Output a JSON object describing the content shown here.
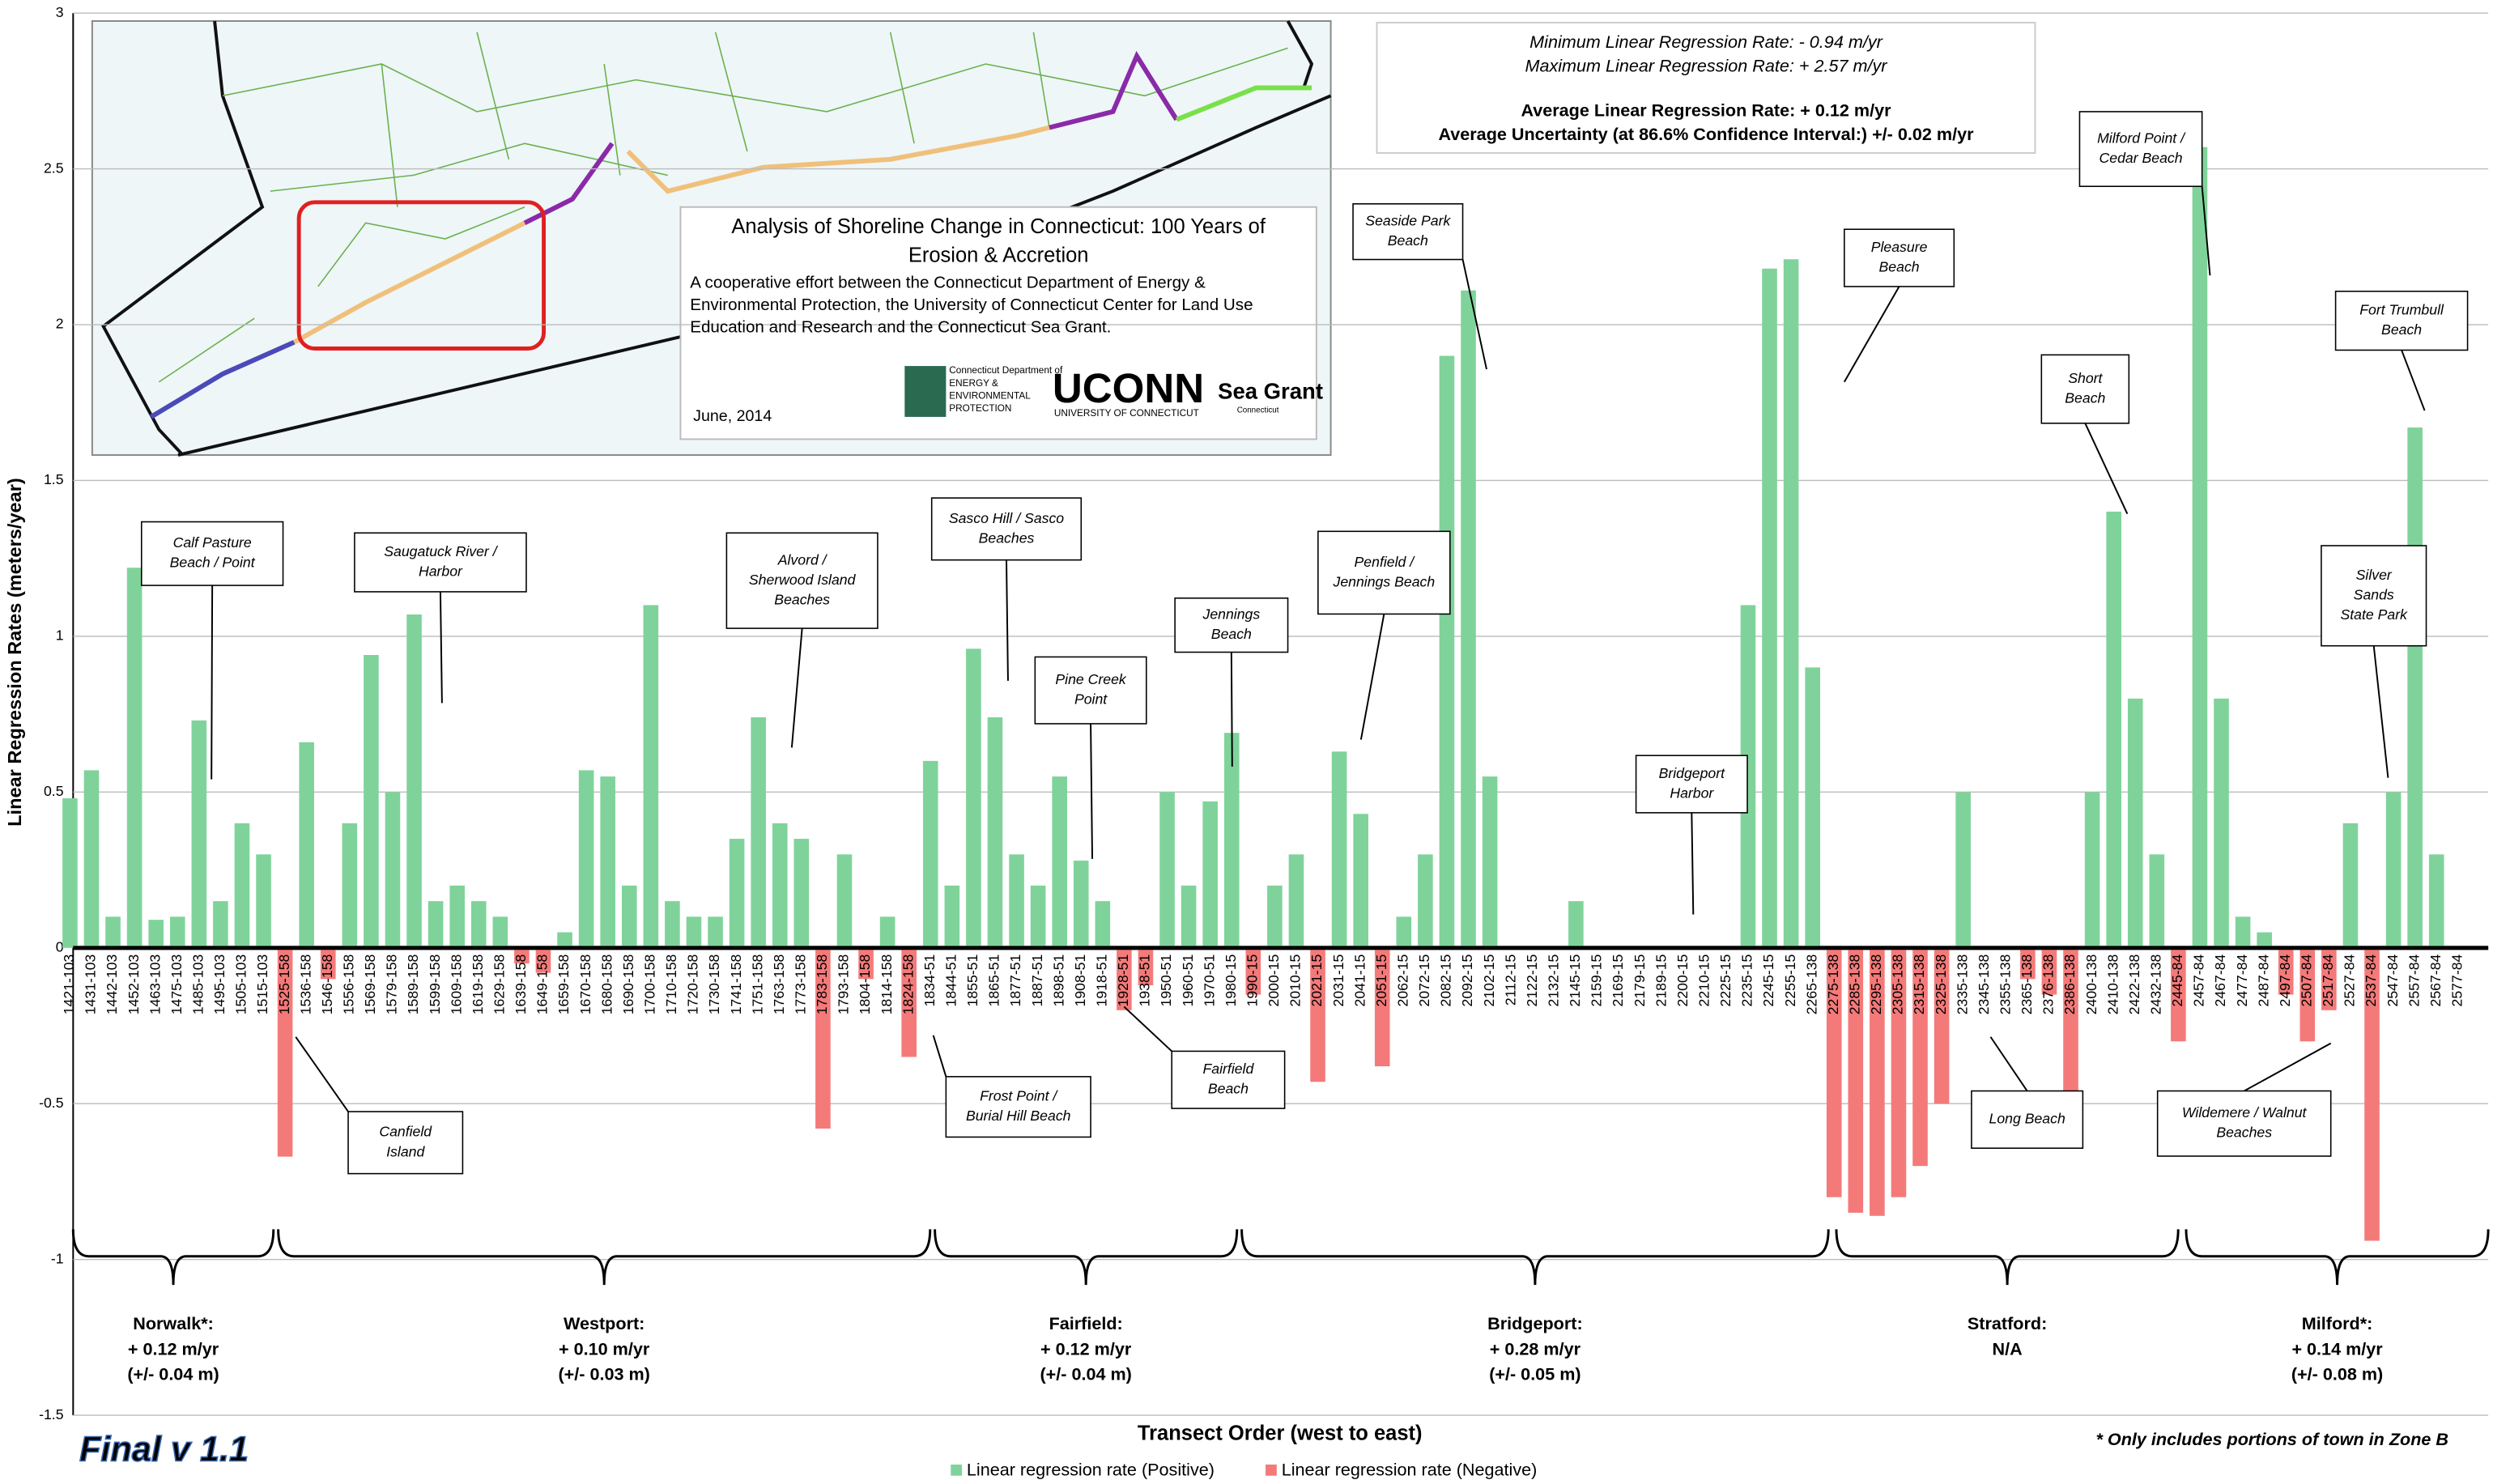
{
  "chart_data": {
    "type": "bar",
    "y_axis_label": "Linear Regression Rates (meters/year)",
    "x_axis_label": "Transect Order (west to east)",
    "ylim": [
      -1.5,
      3
    ],
    "yticks": [
      -1.5,
      -1,
      -0.5,
      {
        "value": 0,
        "label": "0"
      },
      0.5,
      1,
      1.5,
      2,
      2.5,
      3
    ],
    "grid": true,
    "legend_items": [
      {
        "name": "Linear regression rate (Positive)",
        "color": "#7fd39a"
      },
      {
        "name": "Linear regression rate (Negative)",
        "color": "#f47a7a"
      }
    ],
    "categories": [
      "1421-103",
      "1431-103",
      "1442-103",
      "1452-103",
      "1463-103",
      "1475-103",
      "1485-103",
      "1495-103",
      "1505-103",
      "1515-103",
      "1525-158",
      "1536-158",
      "1546-158",
      "1556-158",
      "1569-158",
      "1579-158",
      "1589-158",
      "1599-158",
      "1609-158",
      "1619-158",
      "1629-158",
      "1639-158",
      "1649-158",
      "1659-158",
      "1670-158",
      "1680-158",
      "1690-158",
      "1700-158",
      "1710-158",
      "1720-158",
      "1730-158",
      "1741-158",
      "1751-158",
      "1763-158",
      "1773-158",
      "1783-158",
      "1793-158",
      "1804-158",
      "1814-158",
      "1824-158",
      "1834-51",
      "1844-51",
      "1855-51",
      "1865-51",
      "1877-51",
      "1887-51",
      "1898-51",
      "1908-51",
      "1918-51",
      "1928-51",
      "1938-51",
      "1950-51",
      "1960-51",
      "1970-51",
      "1980-15",
      "1990-15",
      "2000-15",
      "2010-15",
      "2021-15",
      "2031-15",
      "2041-15",
      "2051-15",
      "2062-15",
      "2072-15",
      "2082-15",
      "2092-15",
      "2102-15",
      "2112-15",
      "2122-15",
      "2132-15",
      "2145-15",
      "2159-15",
      "2169-15",
      "2179-15",
      "2189-15",
      "2200-15",
      "2210-15",
      "2225-15",
      "2235-15",
      "2245-15",
      "2255-15",
      "2265-138",
      "2275-138",
      "2285-138",
      "2295-138",
      "2305-138",
      "2315-138",
      "2325-138",
      "2335-138",
      "2345-138",
      "2355-138",
      "2365-138",
      "2376-138",
      "2386-138",
      "2400-138",
      "2410-138",
      "2422-138",
      "2432-138",
      "2445-84",
      "2457-84",
      "2467-84",
      "2477-84",
      "2487-84",
      "2497-84",
      "2507-84",
      "2517-84",
      "2527-84",
      "2537-84",
      "2547-84",
      "2557-84",
      "2567-84",
      "2577-84"
    ],
    "values": [
      0.48,
      0.57,
      0.1,
      1.22,
      0.09,
      0.1,
      0.73,
      0.15,
      0.4,
      0.3,
      -0.67,
      0.66,
      -0.1,
      0.4,
      0.94,
      0.5,
      1.07,
      0.15,
      0.2,
      0.15,
      0.1,
      -0.05,
      -0.08,
      0.05,
      0.57,
      0.55,
      0.2,
      1.1,
      0.15,
      0.1,
      0.1,
      0.35,
      0.74,
      0.4,
      0.35,
      -0.58,
      0.3,
      -0.1,
      0.1,
      -0.35,
      0.6,
      0.2,
      0.96,
      0.74,
      0.3,
      0.2,
      0.55,
      0.28,
      0.15,
      -0.2,
      -0.12,
      0.5,
      0.2,
      0.47,
      0.69,
      -0.15,
      0.2,
      0.3,
      -0.43,
      0.63,
      0.43,
      -0.38,
      0.1,
      0.3,
      1.9,
      2.11,
      0.55,
      0,
      0,
      0,
      0.15,
      0,
      0,
      0,
      0,
      0,
      0,
      0,
      1.1,
      2.18,
      2.21,
      0.9,
      -0.8,
      -0.85,
      -0.86,
      -0.8,
      -0.7,
      -0.5,
      0.5,
      0,
      0,
      -0.1,
      -0.15,
      -0.62,
      0.5,
      1.4,
      0.8,
      0.3,
      -0.3,
      2.57,
      0.8,
      0.1,
      0.05,
      -0.15,
      -0.3,
      -0.2,
      0.4,
      -0.94,
      0.5,
      1.67,
      0.3,
      0
    ],
    "annotations": [
      {
        "lines": [
          "Calf Pasture",
          "Beach / Point"
        ]
      },
      {
        "lines": [
          "Saugatuck River /",
          "Harbor"
        ]
      },
      {
        "lines": [
          "Alvord /",
          "Sherwood Island",
          "Beaches"
        ]
      },
      {
        "lines": [
          "Sasco Hill / Sasco",
          "Beaches"
        ]
      },
      {
        "lines": [
          "Pine Creek",
          "Point"
        ]
      },
      {
        "lines": [
          "Jennings",
          "Beach"
        ]
      },
      {
        "lines": [
          "Penfield /",
          "Jennings Beach"
        ]
      },
      {
        "lines": [
          "Seaside Park",
          "Beach"
        ]
      },
      {
        "lines": [
          "Bridgeport",
          "Harbor"
        ]
      },
      {
        "lines": [
          "Pleasure",
          "Beach"
        ]
      },
      {
        "lines": [
          "Milford Point /",
          "Cedar Beach"
        ]
      },
      {
        "lines": [
          "Fort Trumbull",
          "Beach"
        ]
      },
      {
        "lines": [
          "Short",
          "Beach"
        ]
      },
      {
        "lines": [
          "Silver",
          "Sands",
          "State Park"
        ]
      },
      {
        "lines": [
          "Canfield",
          "Island"
        ]
      },
      {
        "lines": [
          "Frost Point /",
          "Burial Hill Beach"
        ]
      },
      {
        "lines": [
          "Fairfield",
          "Beach"
        ]
      },
      {
        "lines": [
          "Long Beach"
        ]
      },
      {
        "lines": [
          "Wildemere / Walnut",
          "Beaches"
        ]
      }
    ],
    "towns": [
      {
        "lines": [
          "Norwalk*:",
          "+ 0.12 m/yr",
          "(+/- 0.04 m)"
        ]
      },
      {
        "lines": [
          "Westport:",
          "+ 0.10 m/yr",
          "(+/- 0.03 m)"
        ]
      },
      {
        "lines": [
          "Fairfield:",
          "+ 0.12 m/yr",
          "(+/- 0.04 m)"
        ]
      },
      {
        "lines": [
          "Bridgeport:",
          "+ 0.28 m/yr",
          "(+/- 0.05 m)"
        ]
      },
      {
        "lines": [
          "Stratford:",
          "N/A"
        ]
      },
      {
        "lines": [
          "Milford*:",
          "+ 0.14 m/yr",
          "(+/- 0.08 m)"
        ]
      }
    ],
    "stats": [
      "Minimum Linear Regression Rate: - 0.94 m/yr",
      "Maximum Linear Regression Rate: + 2.57 m/yr",
      "Average Linear Regression Rate: + 0.12 m/yr",
      "Average Uncertainty (at 86.6% Confidence Interval:) +/-  0.02 m/yr"
    ],
    "inset": {
      "title_lines": [
        "Analysis of Shoreline Change in Connecticut:  100 Years of",
        "Erosion & Accretion"
      ],
      "description_lines": [
        "A cooperative effort between the Connecticut Department of Energy &",
        "Environmental Protection, the University of Connecticut Center for Land Use",
        "Education and Research and the Connecticut Sea Grant."
      ],
      "date": "June, 2014",
      "logo_deep": [
        "Connecticut Department of",
        "ENERGY &",
        "ENVIRONMENTAL",
        "PROTECTION"
      ],
      "logo_uconn": "UCONN",
      "logo_uconn_sub": "UNIVERSITY OF CONNECTICUT",
      "logo_seagrant": "Sea Grant",
      "logo_seagrant_sub": "Connecticut"
    },
    "footnote": "* Only includes portions of town in Zone B",
    "version": "Final v 1.1"
  }
}
